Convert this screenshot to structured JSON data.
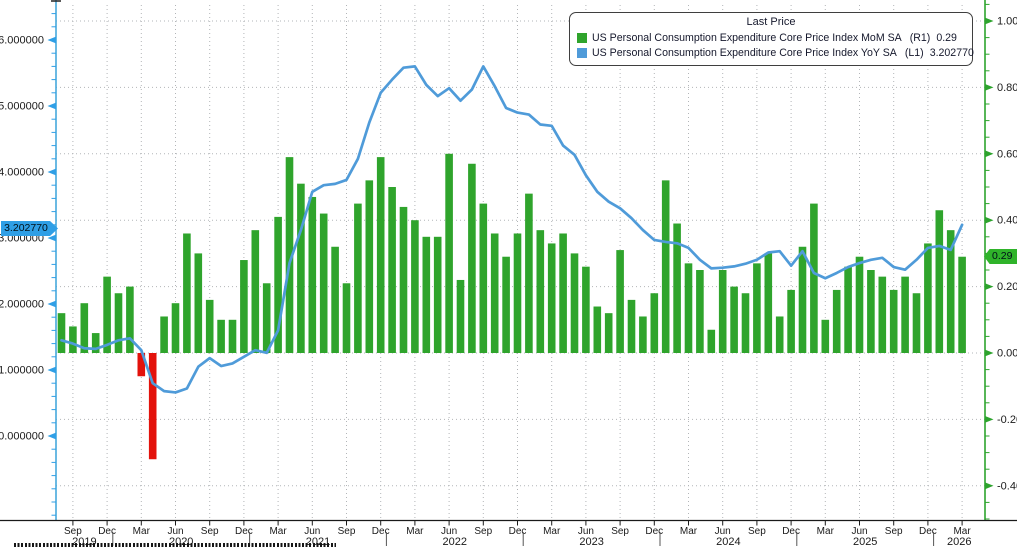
{
  "colors": {
    "bar_positive": "#2fa42c",
    "bar_negative": "#e3120b",
    "line_yoy": "#4f9bd9",
    "left_axis": "#46a8dc",
    "left_axis_arrow": "#2f9fe6",
    "right_axis": "#2da32d",
    "grid": "#b2b5b8",
    "axis_label": "#1a1a1a",
    "x_axis_line": "#1a1a1a",
    "year_separator": "#555555",
    "badge_left_bg": "#2f9fe6",
    "badge_right_bg": "#2fb32a",
    "legend_text": "#15182c"
  },
  "legend": {
    "title": "Last Price",
    "rows": [
      {
        "swatch_color": "#2fa42c",
        "name": "US Personal Consumption Expenditure Core Price Index MoM SA",
        "axis_tag": "(R1)",
        "value": "0.29"
      },
      {
        "swatch_color": "#4f9bd9",
        "name": "US Personal Consumption Expenditure Core Price Index YoY SA",
        "axis_tag": "(L1)",
        "value": "3.202770"
      }
    ]
  },
  "badges": {
    "left": {
      "value": "3.202770"
    },
    "right": {
      "value": "0.29"
    }
  },
  "axes": {
    "left": {
      "tick_labels": [
        "6.000000",
        "5.000000",
        "4.000000",
        "3.000000",
        "2.000000",
        "1.000000",
        "0.000000"
      ],
      "tick_values": [
        6,
        5,
        4,
        3,
        2,
        1,
        0
      ],
      "minor_step": 0.2
    },
    "right": {
      "tick_labels": [
        "1.00",
        "0.80",
        "0.60",
        "0.40",
        "0.20",
        "0.00",
        "-0.20",
        "-0.40"
      ],
      "tick_values": [
        1.0,
        0.8,
        0.6,
        0.4,
        0.2,
        0.0,
        -0.2,
        -0.4
      ],
      "minor_step": 0.05
    },
    "x": {
      "tick_labels": [
        "Sep",
        "Dec",
        "Mar",
        "Jun",
        "Sep",
        "Dec",
        "Mar",
        "Jun",
        "Sep",
        "Dec",
        "Mar",
        "Jun",
        "Sep",
        "Dec",
        "Mar",
        "Jun",
        "Sep",
        "Dec",
        "Mar",
        "Jun",
        "Sep",
        "Dec",
        "Mar",
        "Jun",
        "Sep",
        "Dec",
        "Mar"
      ],
      "tick_bar_indices": [
        1,
        4,
        7,
        10,
        13,
        16,
        19,
        22,
        25,
        28,
        31,
        34,
        37,
        40,
        43,
        46,
        49,
        52,
        55,
        58,
        61,
        64,
        67,
        70,
        73,
        76,
        79
      ],
      "years": [
        {
          "label": "2019",
          "from": 0,
          "to": 4
        },
        {
          "label": "2020",
          "from": 5,
          "to": 16
        },
        {
          "label": "2021",
          "from": 17,
          "to": 28
        },
        {
          "label": "2022",
          "from": 29,
          "to": 40
        },
        {
          "label": "2023",
          "from": 41,
          "to": 52
        },
        {
          "label": "2024",
          "from": 53,
          "to": 64
        },
        {
          "label": "2025",
          "from": 65,
          "to": 76
        },
        {
          "label": "2026",
          "from": 77,
          "to": 79
        }
      ]
    }
  },
  "chart_data": {
    "type": "combo",
    "title": "Last Price",
    "grid": true,
    "legend_position": "top-right",
    "left_axis_range": [
      -1.27,
      6.6
    ],
    "right_axis_range": [
      -0.5,
      1.06
    ],
    "months": [
      "Aug 2019",
      "Sep 2019",
      "Oct 2019",
      "Nov 2019",
      "Dec 2019",
      "Jan 2020",
      "Feb 2020",
      "Mar 2020",
      "Apr 2020",
      "May 2020",
      "Jun 2020",
      "Jul 2020",
      "Aug 2020",
      "Sep 2020",
      "Oct 2020",
      "Nov 2020",
      "Dec 2020",
      "Jan 2021",
      "Feb 2021",
      "Mar 2021",
      "Apr 2021",
      "May 2021",
      "Jun 2021",
      "Jul 2021",
      "Aug 2021",
      "Sep 2021",
      "Oct 2021",
      "Nov 2021",
      "Dec 2021",
      "Jan 2022",
      "Feb 2022",
      "Mar 2022",
      "Apr 2022",
      "May 2022",
      "Jun 2022",
      "Jul 2022",
      "Aug 2022",
      "Sep 2022",
      "Oct 2022",
      "Nov 2022",
      "Dec 2022",
      "Jan 2023",
      "Feb 2023",
      "Mar 2023",
      "Apr 2023",
      "May 2023",
      "Jun 2023",
      "Jul 2023",
      "Aug 2023",
      "Sep 2023",
      "Oct 2023",
      "Nov 2023",
      "Dec 2023",
      "Jan 2024",
      "Feb 2024",
      "Mar 2024",
      "Apr 2024",
      "May 2024",
      "Jun 2024",
      "Jul 2024",
      "Aug 2024",
      "Sep 2024",
      "Oct 2024",
      "Nov 2024",
      "Dec 2024",
      "Jan 2025",
      "Feb 2025",
      "Mar 2025",
      "Apr 2025",
      "May 2025",
      "Jun 2025",
      "Jul 2025",
      "Aug 2025",
      "Sep 2025",
      "Oct 2025",
      "Nov 2025",
      "Dec 2025",
      "Jan 2026",
      "Feb 2026",
      "Mar 2026"
    ],
    "series": [
      {
        "name": "US Personal Consumption Expenditure Core Price Index MoM SA",
        "axis": "R1",
        "type": "bar",
        "last_value": 0.29,
        "values": [
          0.12,
          0.08,
          0.15,
          0.06,
          0.23,
          0.18,
          0.2,
          -0.07,
          -0.32,
          0.11,
          0.15,
          0.36,
          0.3,
          0.16,
          0.1,
          0.1,
          0.28,
          0.37,
          0.21,
          0.41,
          0.59,
          0.51,
          0.47,
          0.42,
          0.32,
          0.21,
          0.45,
          0.52,
          0.59,
          0.5,
          0.44,
          0.4,
          0.35,
          0.35,
          0.6,
          0.22,
          0.57,
          0.45,
          0.36,
          0.29,
          0.36,
          0.48,
          0.37,
          0.33,
          0.36,
          0.3,
          0.26,
          0.14,
          0.12,
          0.31,
          0.16,
          0.11,
          0.18,
          0.52,
          0.39,
          0.27,
          0.25,
          0.07,
          0.25,
          0.2,
          0.18,
          0.27,
          0.3,
          0.11,
          0.19,
          0.32,
          0.45,
          0.1,
          0.19,
          0.26,
          0.29,
          0.25,
          0.23,
          0.19,
          0.23,
          0.18,
          0.33,
          0.43,
          0.37,
          0.29
        ]
      },
      {
        "name": "US Personal Consumption Expenditure Core Price Index YoY SA",
        "axis": "L1",
        "type": "line",
        "last_value": 3.20277,
        "values": [
          1.45,
          1.4,
          1.33,
          1.32,
          1.38,
          1.45,
          1.48,
          1.3,
          0.8,
          0.68,
          0.66,
          0.72,
          1.05,
          1.18,
          1.06,
          1.1,
          1.2,
          1.3,
          1.26,
          1.6,
          2.62,
          3.12,
          3.7,
          3.8,
          3.82,
          3.88,
          4.2,
          4.75,
          5.2,
          5.4,
          5.58,
          5.6,
          5.32,
          5.15,
          5.27,
          5.08,
          5.25,
          5.6,
          5.3,
          4.97,
          4.9,
          4.87,
          4.72,
          4.7,
          4.4,
          4.26,
          3.95,
          3.7,
          3.55,
          3.45,
          3.3,
          3.12,
          2.97,
          2.94,
          2.92,
          2.85,
          2.67,
          2.54,
          2.55,
          2.57,
          2.61,
          2.67,
          2.78,
          2.8,
          2.58,
          2.8,
          2.47,
          2.39,
          2.47,
          2.56,
          2.62,
          2.67,
          2.7,
          2.56,
          2.52,
          2.67,
          2.85,
          2.88,
          2.82,
          3.2
        ]
      }
    ]
  }
}
